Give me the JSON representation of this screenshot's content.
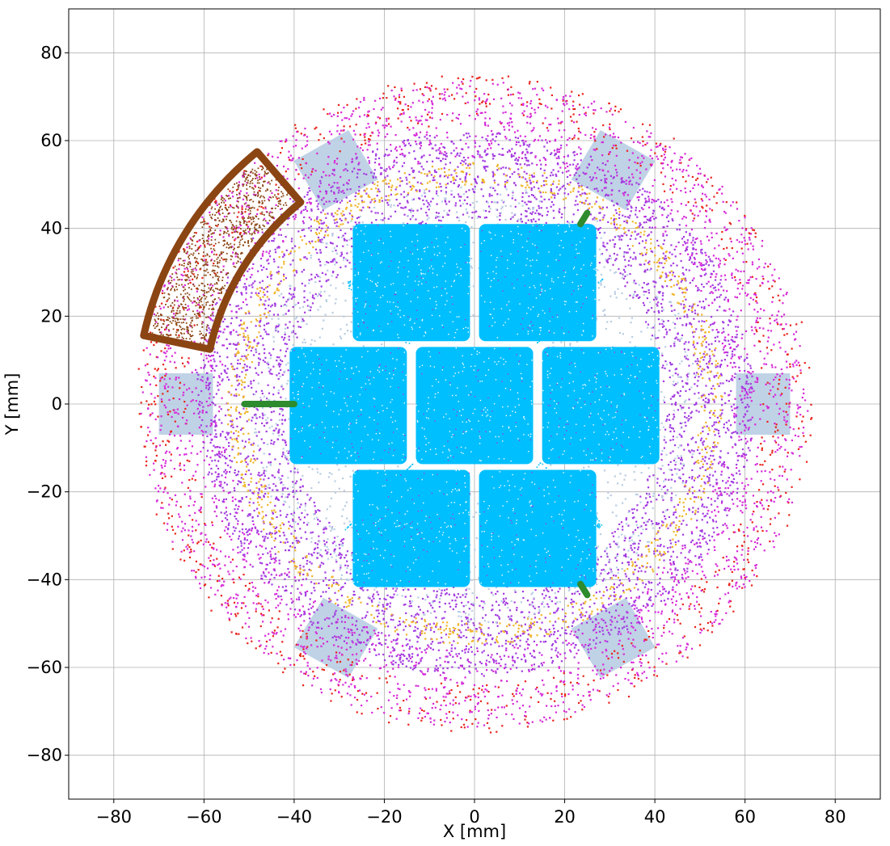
{
  "chart_data": {
    "type": "scatter",
    "title": "",
    "xlabel": "X [mm]",
    "ylabel": "Y [mm]",
    "xlim": [
      -90,
      90
    ],
    "ylim": [
      -90,
      90
    ],
    "grid": true,
    "legend": "none",
    "xticks": [
      -80,
      -60,
      -40,
      -20,
      0,
      20,
      40,
      60,
      80
    ],
    "yticks": [
      -80,
      -60,
      -40,
      -20,
      0,
      20,
      40,
      60,
      80
    ],
    "xtick_labels": [
      "−80",
      "−60",
      "−40",
      "−20",
      "0",
      "20",
      "40",
      "60",
      "80"
    ],
    "ytick_labels": [
      "−80",
      "−60",
      "−40",
      "−20",
      "0",
      "20",
      "40",
      "60",
      "80"
    ],
    "colors": {
      "outer_halo": "#e8231a",
      "magenta_ring": "#d62ad8",
      "purple_ring": "#a23be0",
      "gold_ring": "#f0b62b",
      "light_blue": "#b9cde3",
      "cyan_tiles": "#00bfff",
      "brown_arc": "#8b4513",
      "green_marks": "#2e8b2e"
    },
    "rings": [
      {
        "name": "outer halo",
        "r_inner": 64,
        "r_outer": 75,
        "color": "#e8231a",
        "count": 900
      },
      {
        "name": "magenta band",
        "r_inner": 56,
        "r_outer": 74,
        "color": "#d62ad8",
        "count": 2600
      },
      {
        "name": "purple band",
        "r_inner": 42,
        "r_outer": 62,
        "color": "#a23be0",
        "count": 4200
      },
      {
        "name": "gold ring",
        "r_inner": 50,
        "r_outer": 55,
        "color": "#f0b62b",
        "count": 900
      },
      {
        "name": "inner light",
        "r_inner": 20,
        "r_outer": 50,
        "color": "#b9cde3",
        "count": 1500
      }
    ],
    "pads": [
      {
        "angle_deg": 0,
        "r_inner": 58,
        "r_outer": 70,
        "half_width": 7
      },
      {
        "angle_deg": 180,
        "r_inner": 58,
        "r_outer": 70,
        "half_width": 7
      },
      {
        "angle_deg": 60,
        "r_inner": 55,
        "r_outer": 68,
        "half_width": 7
      },
      {
        "angle_deg": 120,
        "r_inner": 55,
        "r_outer": 68,
        "half_width": 7
      },
      {
        "angle_deg": 240,
        "r_inner": 55,
        "r_outer": 68,
        "half_width": 7
      },
      {
        "angle_deg": 300,
        "r_inner": 55,
        "r_outer": 68,
        "half_width": 7
      }
    ],
    "tiles": [
      {
        "x0": -27,
        "x1": -1,
        "y0": 15,
        "y1": 41
      },
      {
        "x0": 1,
        "x1": 27,
        "y0": 15,
        "y1": 41
      },
      {
        "x0": -41,
        "x1": -15,
        "y0": -13,
        "y1": 13
      },
      {
        "x0": -13,
        "x1": 13,
        "y0": -13,
        "y1": 13
      },
      {
        "x0": 15,
        "x1": 41,
        "y0": -13,
        "y1": 13
      },
      {
        "x0": -27,
        "x1": -1,
        "y0": -41,
        "y1": -15
      },
      {
        "x0": 1,
        "x1": 27,
        "y0": -41,
        "y1": -15
      }
    ],
    "brown_arc": {
      "r_inner": 60,
      "r_outer": 75,
      "angle_start_deg": 130,
      "angle_end_deg": 168
    },
    "green_marks": [
      {
        "x0": -51,
        "y0": 0,
        "x1": -40,
        "y1": 0
      },
      {
        "x0": 23.5,
        "y0": 41,
        "x1": 25,
        "y1": 43.5
      },
      {
        "x0": 23.5,
        "y0": -41,
        "x1": 25,
        "y1": -43.5
      }
    ]
  }
}
